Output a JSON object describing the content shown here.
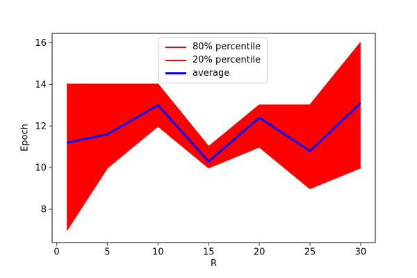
{
  "figure": {
    "background": "#ffffff"
  },
  "colors": {
    "band_fill": "#ff0000",
    "percentile_line": "#ff0000",
    "average_line": "#0000ff",
    "spine": "#4d4d4d",
    "tick_label": "#000000",
    "legend_border": "#cccccc"
  },
  "chart_data": {
    "type": "area",
    "title": "",
    "xlabel": "R",
    "ylabel": "Epoch",
    "x": [
      1,
      5,
      10,
      15,
      20,
      25,
      30
    ],
    "series": [
      {
        "name": "80% percentile",
        "role": "band-upper",
        "color": "#ff0000",
        "linewidth": 2,
        "values": [
          14,
          14,
          14,
          11,
          13,
          13,
          16
        ]
      },
      {
        "name": "20% percentile",
        "role": "band-lower",
        "color": "#ff0000",
        "linewidth": 2,
        "values": [
          7,
          10,
          12,
          10,
          11,
          9,
          10
        ]
      },
      {
        "name": "average",
        "role": "line",
        "color": "#0000ff",
        "linewidth": 3,
        "values": [
          11.2,
          11.6,
          13.0,
          10.3,
          12.4,
          10.8,
          13.1
        ]
      }
    ],
    "band_fill_color": "#ff0000",
    "xlim": [
      -0.45,
      31.45
    ],
    "ylim": [
      6.4,
      16.45
    ],
    "xticks": [
      0,
      5,
      10,
      15,
      20,
      25,
      30
    ],
    "yticks": [
      8,
      10,
      12,
      14,
      16
    ],
    "grid": false,
    "legend": {
      "position": "upper center",
      "entries": [
        "80% percentile",
        "20% percentile",
        "average"
      ]
    }
  }
}
